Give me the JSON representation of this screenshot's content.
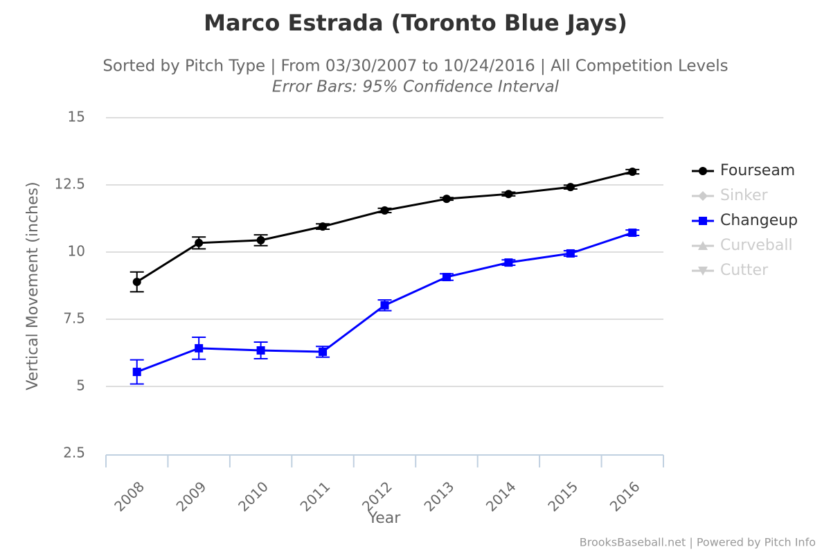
{
  "chart_data": {
    "type": "line",
    "title": "Marco Estrada (Toronto Blue Jays)",
    "subtitle": "Sorted by Pitch Type | From 03/30/2007 to 10/24/2016 | All Competition Levels",
    "note": "Error Bars: 95% Confidence Interval",
    "x_label": "Year",
    "y_label": "Vertical Movement (inches)",
    "credits": "BrooksBaseball.net | Powered by Pitch Info",
    "categories": [
      "2008",
      "2009",
      "2010",
      "2011",
      "2012",
      "2013",
      "2014",
      "2015",
      "2016"
    ],
    "ylim": [
      2.5,
      15
    ],
    "yticks": [
      2.5,
      5,
      7.5,
      10,
      12.5,
      15
    ],
    "grid": true,
    "legend": "right",
    "series": [
      {
        "name": "Fourseam",
        "color": "#000000",
        "marker": "circle",
        "visible": true,
        "values": [
          8.89,
          10.34,
          10.44,
          10.95,
          11.55,
          11.98,
          12.16,
          12.42,
          12.99
        ],
        "errors": [
          0.37,
          0.22,
          0.2,
          0.1,
          0.08,
          0.05,
          0.07,
          0.07,
          0.08
        ]
      },
      {
        "name": "Sinker",
        "color": "#cccccc",
        "marker": "diamond",
        "visible": false
      },
      {
        "name": "Changeup",
        "color": "#0000ff",
        "marker": "square",
        "visible": true,
        "values": [
          5.54,
          6.42,
          6.34,
          6.29,
          8.02,
          9.07,
          9.61,
          9.95,
          10.72
        ],
        "errors": [
          0.45,
          0.41,
          0.31,
          0.2,
          0.2,
          0.12,
          0.1,
          0.1,
          0.1
        ]
      },
      {
        "name": "Curveball",
        "color": "#cccccc",
        "marker": "triangle",
        "visible": false
      },
      {
        "name": "Cutter",
        "color": "#cccccc",
        "marker": "triangle-down",
        "visible": false
      }
    ]
  }
}
